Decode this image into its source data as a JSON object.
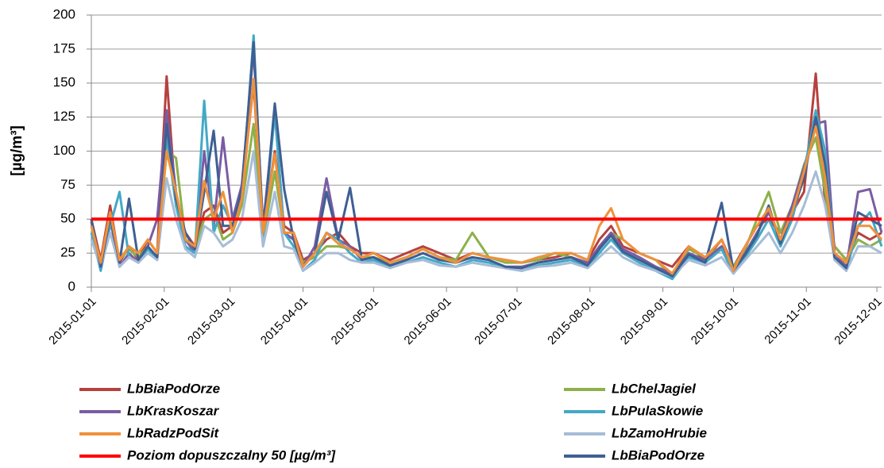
{
  "chart_data": {
    "type": "line",
    "ylabel": "[µg/m³]",
    "xlim": [
      "2015-01-01",
      "2015-12-03"
    ],
    "xticks": [
      "2015-01-01",
      "2015-02-01",
      "2015-03-01",
      "2015-04-01",
      "2015-05-01",
      "2015-06-01",
      "2015-07-01",
      "2015-08-01",
      "2015-09-01",
      "2015-10-01",
      "2015-11-01",
      "2015-12-01"
    ],
    "ylim": [
      0,
      200
    ],
    "yticks": [
      0,
      25,
      50,
      75,
      100,
      125,
      150,
      175,
      200
    ],
    "grid": true,
    "x": [
      "2015-01-01",
      "2015-01-05",
      "2015-01-09",
      "2015-01-13",
      "2015-01-17",
      "2015-01-21",
      "2015-01-25",
      "2015-01-29",
      "2015-02-02",
      "2015-02-06",
      "2015-02-10",
      "2015-02-14",
      "2015-02-18",
      "2015-02-22",
      "2015-02-26",
      "2015-03-02",
      "2015-03-06",
      "2015-03-11",
      "2015-03-15",
      "2015-03-20",
      "2015-03-24",
      "2015-03-28",
      "2015-04-01",
      "2015-04-06",
      "2015-04-11",
      "2015-04-16",
      "2015-04-21",
      "2015-04-26",
      "2015-05-01",
      "2015-05-08",
      "2015-05-15",
      "2015-05-22",
      "2015-05-29",
      "2015-06-05",
      "2015-06-12",
      "2015-06-19",
      "2015-06-26",
      "2015-07-03",
      "2015-07-10",
      "2015-07-17",
      "2015-07-24",
      "2015-07-31",
      "2015-08-05",
      "2015-08-10",
      "2015-08-15",
      "2015-08-22",
      "2015-08-29",
      "2015-09-05",
      "2015-09-12",
      "2015-09-19",
      "2015-09-26",
      "2015-10-01",
      "2015-10-06",
      "2015-10-11",
      "2015-10-16",
      "2015-10-21",
      "2015-10-26",
      "2015-10-31",
      "2015-11-05",
      "2015-11-09",
      "2015-11-13",
      "2015-11-18",
      "2015-11-23",
      "2015-11-28",
      "2015-12-03"
    ],
    "series": [
      {
        "name": "LbBiaPodOrze",
        "color": "#b5413f",
        "values": [
          50,
          20,
          60,
          18,
          30,
          20,
          35,
          25,
          155,
          60,
          40,
          30,
          55,
          60,
          40,
          45,
          70,
          150,
          40,
          100,
          45,
          40,
          20,
          25,
          35,
          40,
          30,
          25,
          25,
          20,
          25,
          30,
          25,
          20,
          25,
          22,
          20,
          18,
          20,
          22,
          25,
          20,
          35,
          45,
          30,
          25,
          20,
          15,
          30,
          20,
          35,
          15,
          30,
          45,
          50,
          40,
          55,
          70,
          157,
          60,
          30,
          20,
          40,
          35,
          40
        ]
      },
      {
        "name": "LbChelJagiel",
        "color": "#8db04a",
        "values": [
          45,
          18,
          55,
          20,
          28,
          22,
          30,
          22,
          100,
          95,
          35,
          28,
          50,
          55,
          35,
          40,
          60,
          120,
          35,
          85,
          40,
          35,
          18,
          22,
          30,
          30,
          28,
          22,
          22,
          18,
          22,
          28,
          22,
          20,
          40,
          22,
          18,
          18,
          20,
          25,
          22,
          18,
          30,
          40,
          35,
          25,
          20,
          8,
          28,
          22,
          30,
          15,
          28,
          50,
          70,
          40,
          60,
          90,
          110,
          70,
          30,
          20,
          35,
          30,
          35
        ]
      },
      {
        "name": "LbKrasKoszar",
        "color": "#7a5ca3",
        "values": [
          48,
          15,
          50,
          15,
          25,
          18,
          30,
          50,
          130,
          70,
          35,
          25,
          100,
          45,
          110,
          50,
          75,
          175,
          45,
          130,
          40,
          35,
          15,
          30,
          80,
          35,
          30,
          20,
          22,
          15,
          20,
          25,
          20,
          18,
          22,
          20,
          15,
          15,
          18,
          20,
          22,
          18,
          30,
          40,
          28,
          22,
          15,
          10,
          25,
          20,
          30,
          12,
          25,
          40,
          55,
          35,
          60,
          88,
          120,
          122,
          25,
          15,
          70,
          72,
          40
        ]
      },
      {
        "name": "LbPulaSkowie",
        "color": "#43a9c5",
        "values": [
          40,
          12,
          45,
          70,
          22,
          18,
          28,
          20,
          110,
          60,
          30,
          25,
          137,
          40,
          60,
          45,
          65,
          185,
          38,
          128,
          40,
          30,
          12,
          20,
          40,
          35,
          25,
          18,
          20,
          15,
          18,
          22,
          18,
          15,
          20,
          18,
          14,
          12,
          16,
          18,
          20,
          15,
          25,
          35,
          25,
          18,
          12,
          6,
          22,
          18,
          28,
          10,
          22,
          35,
          50,
          30,
          50,
          85,
          130,
          100,
          20,
          12,
          45,
          55,
          30
        ]
      },
      {
        "name": "LbZamoHrubie",
        "color": "#a6bcd8",
        "values": [
          35,
          15,
          40,
          15,
          22,
          18,
          25,
          20,
          80,
          50,
          28,
          22,
          45,
          40,
          30,
          35,
          50,
          100,
          30,
          70,
          30,
          28,
          12,
          18,
          25,
          25,
          20,
          18,
          18,
          14,
          18,
          20,
          16,
          15,
          18,
          16,
          14,
          12,
          15,
          16,
          18,
          14,
          22,
          30,
          22,
          16,
          12,
          8,
          20,
          16,
          22,
          10,
          20,
          30,
          40,
          25,
          40,
          60,
          85,
          60,
          20,
          12,
          30,
          30,
          25
        ]
      },
      {
        "name": "LbBiaPodOrze",
        "color": "#3e5f92",
        "values": [
          50,
          15,
          52,
          18,
          65,
          20,
          30,
          22,
          120,
          65,
          40,
          28,
          70,
          115,
          45,
          45,
          72,
          180,
          40,
          135,
          72,
          35,
          15,
          25,
          70,
          35,
          73,
          20,
          22,
          16,
          20,
          25,
          20,
          18,
          22,
          20,
          15,
          14,
          18,
          20,
          22,
          16,
          28,
          38,
          26,
          20,
          14,
          8,
          24,
          18,
          62,
          12,
          24,
          38,
          60,
          32,
          55,
          80,
          125,
          90,
          22,
          14,
          55,
          50,
          45
        ]
      },
      {
        "name": "LbRadzPodSit",
        "color": "#f0913b",
        "values": [
          45,
          18,
          55,
          20,
          30,
          25,
          35,
          25,
          100,
          70,
          35,
          30,
          78,
          50,
          70,
          40,
          65,
          153,
          40,
          98,
          40,
          40,
          15,
          25,
          40,
          32,
          28,
          22,
          25,
          18,
          22,
          28,
          22,
          18,
          25,
          22,
          20,
          18,
          22,
          25,
          25,
          20,
          45,
          58,
          35,
          25,
          20,
          10,
          30,
          22,
          35,
          12,
          30,
          45,
          58,
          35,
          55,
          85,
          118,
          80,
          25,
          18,
          45,
          45,
          35
        ]
      }
    ],
    "threshold": {
      "name": "Poziom dopuszczalny 50 [µg/m³]",
      "value": 50,
      "color": "#ff0000"
    }
  }
}
